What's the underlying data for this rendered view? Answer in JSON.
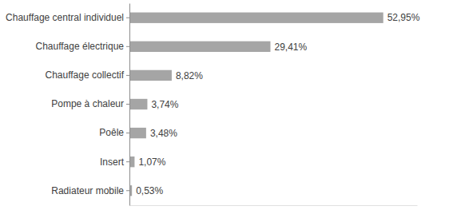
{
  "chart_data": {
    "type": "bar",
    "orientation": "horizontal",
    "categories": [
      "Chauffage central individuel",
      "Chauffage électrique",
      "Chauffage collectif",
      "Pompe à chaleur",
      "Poêle",
      "Insert",
      "Radiateur mobile"
    ],
    "values": [
      52.95,
      29.41,
      8.82,
      3.74,
      3.48,
      1.07,
      0.53
    ],
    "value_labels": [
      "52,95%",
      "29,41%",
      "8,82%",
      "3,74%",
      "3,48%",
      "1,07%",
      "0,53%"
    ],
    "color": "#a5a5a5",
    "xlim": [
      0,
      60
    ],
    "data_labels": true,
    "tick_labels": "y",
    "grid": false
  }
}
